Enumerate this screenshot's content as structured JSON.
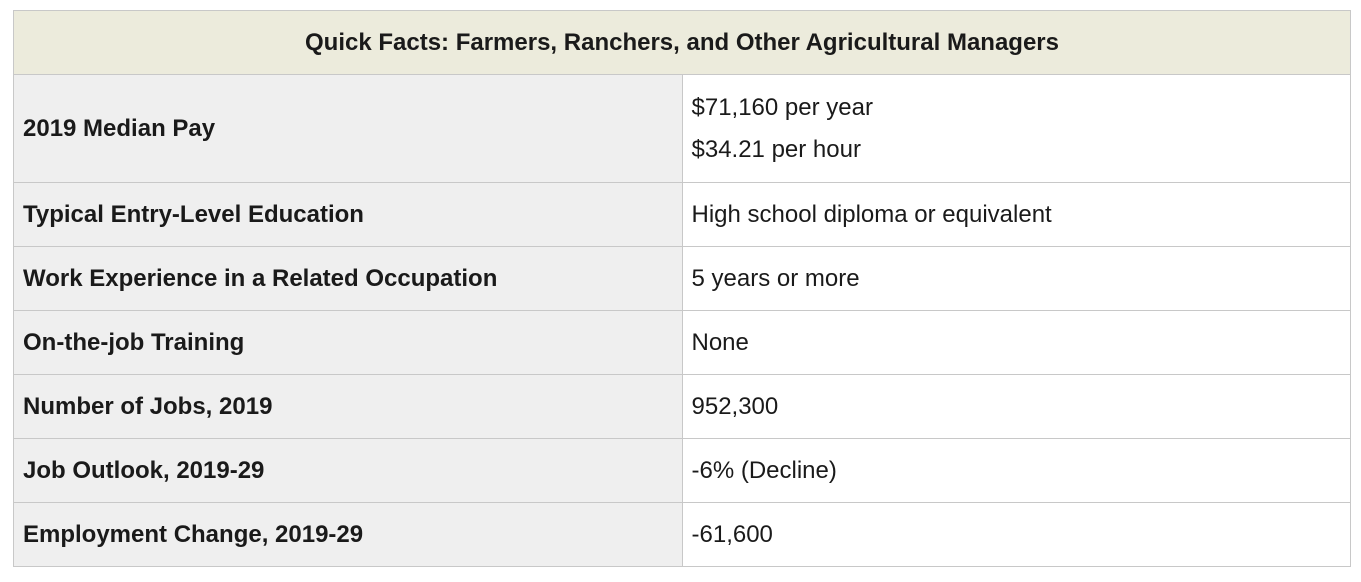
{
  "title": "Quick Facts: Farmers, Ranchers, and Other Agricultural Managers",
  "rows": [
    {
      "label": "2019 Median Pay",
      "values": [
        "$71,160 per year",
        "$34.21 per hour"
      ]
    },
    {
      "label": "Typical Entry-Level Education",
      "values": [
        "High school diploma or equivalent"
      ]
    },
    {
      "label": "Work Experience in a Related Occupation",
      "values": [
        "5 years or more"
      ]
    },
    {
      "label": "On-the-job Training",
      "values": [
        "None"
      ]
    },
    {
      "label": "Number of Jobs, 2019",
      "values": [
        "952,300"
      ]
    },
    {
      "label": "Job Outlook, 2019-29",
      "values": [
        "-6% (Decline)"
      ]
    },
    {
      "label": "Employment Change, 2019-29",
      "values": [
        "-61,600"
      ]
    }
  ]
}
